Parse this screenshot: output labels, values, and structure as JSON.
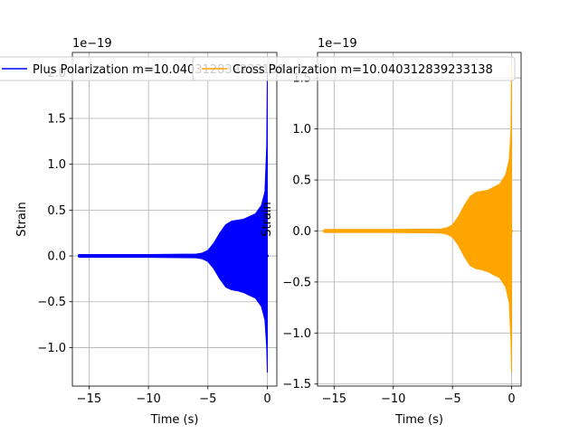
{
  "chart_data": [
    {
      "type": "line",
      "title": "",
      "xlabel": "Time (s)",
      "ylabel": "Strain",
      "offset_text": "1e−19",
      "xlim": [
        -16.4,
        0.8
      ],
      "ylim": [
        -1.42,
        2.22
      ],
      "xticks": [
        -15,
        -10,
        -5,
        0
      ],
      "xtick_labels": [
        "−15",
        "−10",
        "−5",
        "0"
      ],
      "yticks": [
        -1.0,
        -0.5,
        0.0,
        0.5,
        1.0,
        1.5,
        2.0
      ],
      "ytick_labels": [
        "−1.0",
        "−0.5",
        "0.0",
        "0.5",
        "1.0",
        "1.5",
        "2.0"
      ],
      "grid": true,
      "legend_position": "top",
      "series": [
        {
          "name": "Plus Polarization m=10.040312839233138",
          "color": "#0000ff",
          "envelope": {
            "x": [
              -15.8,
              -10,
              -6,
              -5.5,
              -5,
              -4.5,
              -4,
              -3.5,
              -3,
              -2.5,
              -2,
              -1.5,
              -1,
              -0.5,
              -0.2,
              -0.05,
              0.0
            ],
            "upper": [
              0.015,
              0.015,
              0.02,
              0.03,
              0.06,
              0.14,
              0.25,
              0.34,
              0.38,
              0.39,
              0.4,
              0.43,
              0.46,
              0.55,
              0.7,
              1.2,
              2.0
            ],
            "lower": [
              -0.015,
              -0.015,
              -0.02,
              -0.03,
              -0.06,
              -0.14,
              -0.25,
              -0.34,
              -0.37,
              -0.38,
              -0.4,
              -0.43,
              -0.46,
              -0.55,
              -0.7,
              -1.0,
              -1.27
            ]
          }
        }
      ]
    },
    {
      "type": "line",
      "title": "",
      "xlabel": "Time (s)",
      "ylabel": "Strain",
      "offset_text": "1e−19",
      "xlim": [
        -16.4,
        0.8
      ],
      "ylim": [
        -1.52,
        1.75
      ],
      "xticks": [
        -15,
        -10,
        -5,
        0
      ],
      "xtick_labels": [
        "−15",
        "−10",
        "−5",
        "0"
      ],
      "yticks": [
        -1.5,
        -1.0,
        -0.5,
        0.0,
        0.5,
        1.0,
        1.5
      ],
      "ytick_labels": [
        "−1.5",
        "−1.0",
        "−0.5",
        "0.0",
        "0.5",
        "1.0",
        "1.5"
      ],
      "grid": true,
      "legend_position": "top",
      "series": [
        {
          "name": "Cross Polarization m=10.040312839233138",
          "color": "#ffa500",
          "envelope": {
            "x": [
              -15.8,
              -10,
              -6,
              -5.5,
              -5,
              -4.5,
              -4,
              -3.5,
              -3,
              -2.5,
              -2,
              -1.5,
              -1,
              -0.5,
              -0.2,
              -0.05,
              0.0
            ],
            "upper": [
              0.015,
              0.015,
              0.02,
              0.03,
              0.06,
              0.14,
              0.25,
              0.34,
              0.38,
              0.39,
              0.4,
              0.43,
              0.46,
              0.55,
              0.7,
              1.0,
              1.65
            ],
            "lower": [
              -0.015,
              -0.015,
              -0.02,
              -0.03,
              -0.06,
              -0.14,
              -0.25,
              -0.34,
              -0.37,
              -0.38,
              -0.4,
              -0.43,
              -0.46,
              -0.55,
              -0.7,
              -1.1,
              -1.38
            ]
          }
        }
      ]
    }
  ]
}
